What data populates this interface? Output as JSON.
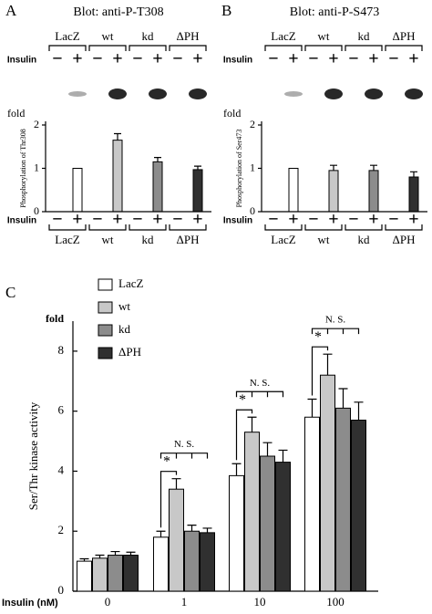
{
  "chart_data": [
    {
      "type": "bar",
      "panel_label": "A",
      "title": "Blot: anti-P-T308",
      "categories": [
        "LacZ",
        "wt",
        "kd",
        "ΔPH"
      ],
      "insulin_label": "Insulin",
      "insulin_signs": [
        "−",
        "+"
      ],
      "values": [
        1.0,
        1.65,
        1.15,
        0.97
      ],
      "errors": [
        null,
        0.15,
        0.1,
        0.08
      ],
      "colors": [
        "#ffffff",
        "#c8c8c8",
        "#8c8c8c",
        "#303030"
      ],
      "y_unit": "fold",
      "ylabel": "Phosphorylation of Thr308",
      "ylim": [
        0,
        2
      ],
      "yticks": [
        0,
        1,
        2
      ]
    },
    {
      "type": "bar",
      "panel_label": "B",
      "title": "Blot: anti-P-S473",
      "categories": [
        "LacZ",
        "wt",
        "kd",
        "ΔPH"
      ],
      "insulin_label": "Insulin",
      "insulin_signs": [
        "−",
        "+"
      ],
      "values": [
        1.0,
        0.95,
        0.95,
        0.8
      ],
      "errors": [
        null,
        0.12,
        0.12,
        0.12
      ],
      "colors": [
        "#ffffff",
        "#c8c8c8",
        "#8c8c8c",
        "#303030"
      ],
      "y_unit": "fold",
      "ylabel": "Phosphorylation of Ser473",
      "ylim": [
        0,
        2
      ],
      "yticks": [
        0,
        1,
        2
      ]
    },
    {
      "type": "grouped_bar",
      "panel_label": "C",
      "y_unit": "fold",
      "ylabel": "Ser/Thr kinase activity",
      "xlabel": "Insulin (nM)",
      "categories": [
        "0",
        "1",
        "10",
        "100"
      ],
      "series": [
        {
          "name": "LacZ",
          "color": "#ffffff",
          "values": [
            1.0,
            1.8,
            3.85,
            5.8
          ],
          "errors": [
            0.08,
            0.2,
            0.4,
            0.6
          ]
        },
        {
          "name": "wt",
          "color": "#c8c8c8",
          "values": [
            1.1,
            3.4,
            5.3,
            7.2
          ],
          "errors": [
            0.1,
            0.35,
            0.5,
            0.7
          ]
        },
        {
          "name": "kd",
          "color": "#8c8c8c",
          "values": [
            1.2,
            2.0,
            4.5,
            6.1
          ],
          "errors": [
            0.12,
            0.2,
            0.45,
            0.65
          ]
        },
        {
          "name": "ΔPH",
          "color": "#303030",
          "values": [
            1.2,
            1.95,
            4.3,
            5.7
          ],
          "errors": [
            0.1,
            0.15,
            0.4,
            0.6
          ]
        }
      ],
      "annotations": [
        "*",
        "N. S.",
        "*",
        "N. S.",
        "*",
        "N. S."
      ],
      "ylim": [
        0,
        9
      ],
      "yticks": [
        0,
        2,
        4,
        6,
        8
      ]
    }
  ]
}
